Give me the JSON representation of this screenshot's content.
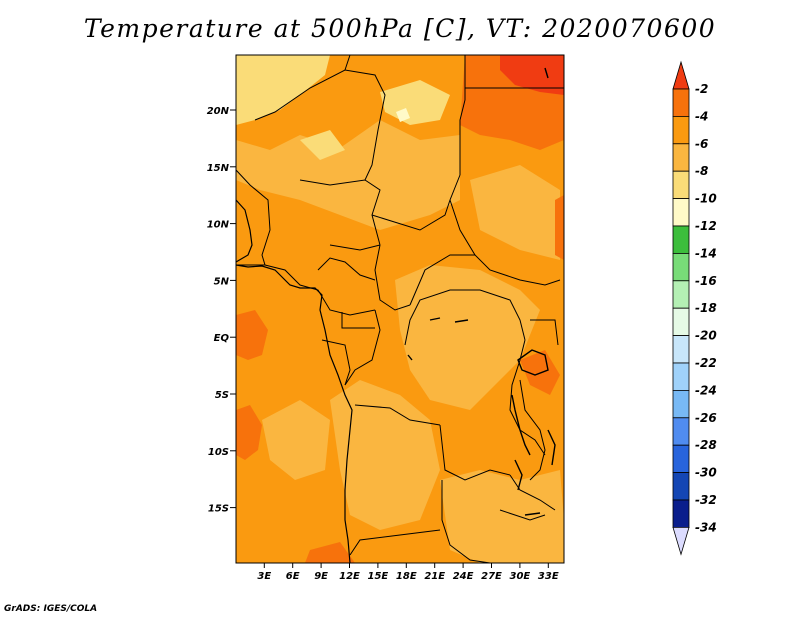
{
  "title": "Temperature at 500hPa [C], VT: 2020070600",
  "credit": "GrADS: IGES/COLA",
  "map": {
    "lat_ticks": [
      "20N",
      "15N",
      "10N",
      "5N",
      "EQ",
      "5S",
      "10S",
      "15S"
    ],
    "lon_ticks": [
      "3E",
      "6E",
      "9E",
      "12E",
      "15E",
      "18E",
      "21E",
      "24E",
      "27E",
      "30E",
      "33E"
    ]
  },
  "colorbar": {
    "levels": [
      "-2",
      "-4",
      "-6",
      "-8",
      "-10",
      "-12",
      "-14",
      "-16",
      "-18",
      "-20",
      "-22",
      "-24",
      "-26",
      "-28",
      "-30",
      "-32",
      "-34"
    ],
    "colors": [
      "#f03c12",
      "#f7720c",
      "#fa9a10",
      "#fab640",
      "#fadc78",
      "#fffac8",
      "#3cbe3c",
      "#78dc78",
      "#b4f0b4",
      "#e6fae6",
      "#c8e6fa",
      "#a0d2fa",
      "#78b9f5",
      "#508cf0",
      "#2864dc",
      "#1446b4",
      "#0a1e8c",
      "#0a0a60",
      "#dcdcff"
    ]
  },
  "palette": {
    "deep_orange": "#f7720c",
    "orange": "#fa9a10",
    "light_orange": "#fab640",
    "yellow": "#fadc78",
    "cream": "#fffac8",
    "red": "#f03c12"
  }
}
